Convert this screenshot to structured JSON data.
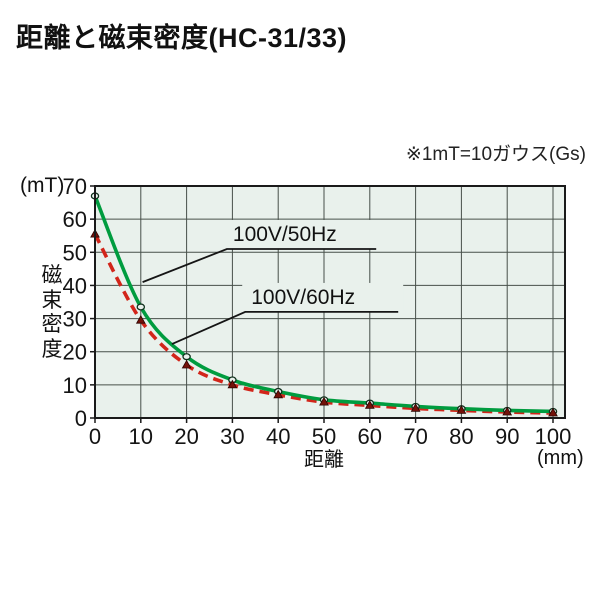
{
  "note": "※1mT=10ガウス(Gs)",
  "chart_data": {
    "type": "line",
    "title": "距離と磁束密度(HC-31/33)",
    "xlabel": "距離",
    "x_unit": "(mm)",
    "ylabel": "磁束密度",
    "y_unit": "(mT)",
    "xlim": [
      0,
      100
    ],
    "ylim": [
      0,
      70
    ],
    "xticks": [
      0,
      10,
      20,
      30,
      40,
      50,
      60,
      70,
      80,
      90,
      100
    ],
    "yticks": [
      0,
      10,
      20,
      30,
      40,
      50,
      60,
      70
    ],
    "grid": true,
    "legend_position": "inline-annotations",
    "colors": {
      "plot_bg": "#e9f1ec",
      "grid": "#47504a",
      "frame": "#1a1a1a",
      "text": "#141414",
      "series_50hz": "#009c3f",
      "series_60hz": "#d2251a"
    },
    "x": [
      0,
      10,
      20,
      30,
      40,
      50,
      60,
      70,
      80,
      90,
      100
    ],
    "series": [
      {
        "name": "100V/50Hz",
        "color": "#009c3f",
        "style": "solid",
        "marker": "circle",
        "values": [
          67,
          33.5,
          18.5,
          11.5,
          8,
          5.5,
          4.5,
          3.5,
          2.8,
          2.3,
          2
        ]
      },
      {
        "name": "100V/60Hz",
        "color": "#d2251a",
        "style": "dashed",
        "marker": "triangle",
        "values": [
          55.5,
          29.5,
          16,
          10,
          7,
          4.8,
          3.8,
          2.9,
          2.3,
          1.8,
          1.5
        ]
      }
    ],
    "annotations": [
      {
        "label": "100V/50Hz",
        "series_index": 0,
        "underline": {
          "x1": 28.8,
          "x2": 61.4,
          "y": 51
        },
        "tip": {
          "x": 10.4,
          "y": 41
        }
      },
      {
        "label": "100V/60Hz",
        "series_index": 1,
        "underline": {
          "x1": 32.8,
          "x2": 66.2,
          "y": 32
        },
        "tip": {
          "x": 16.8,
          "y": 22.3
        }
      }
    ]
  }
}
